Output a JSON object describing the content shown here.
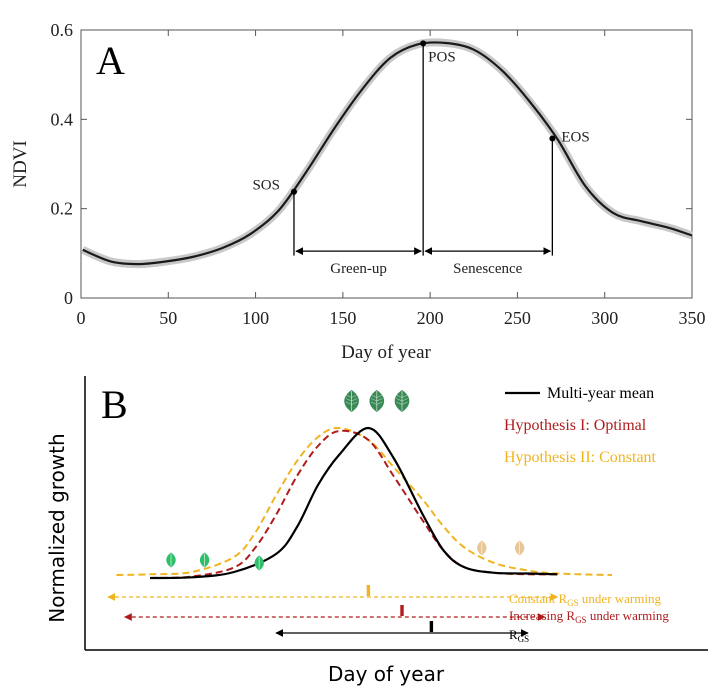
{
  "chart_data": [
    {
      "panel": "A",
      "type": "line",
      "panel_label": "A",
      "xlabel": "Day of year",
      "ylabel": "NDVI",
      "xlim": [
        0,
        350
      ],
      "ylim": [
        0,
        0.6
      ],
      "xticks": [
        0,
        50,
        100,
        150,
        200,
        250,
        300,
        350
      ],
      "yticks": [
        0,
        0.2,
        0.4,
        0.6
      ],
      "ytick_labels": [
        "0",
        "0.2",
        "0.4",
        "0.6"
      ],
      "series": [
        {
          "name": "NDVI",
          "color": "#1a1a1a",
          "band_color": "#c8c8c8",
          "x": [
            1,
            17,
            33,
            49,
            65,
            81,
            97,
            113,
            129,
            145,
            161,
            177,
            193,
            209,
            225,
            241,
            257,
            273,
            289,
            305,
            321,
            337,
            350
          ],
          "y": [
            0.108,
            0.082,
            0.076,
            0.082,
            0.093,
            0.112,
            0.143,
            0.195,
            0.282,
            0.379,
            0.467,
            0.537,
            0.568,
            0.571,
            0.556,
            0.51,
            0.44,
            0.355,
            0.25,
            0.19,
            0.172,
            0.157,
            0.14
          ]
        }
      ],
      "markers": [
        {
          "label": "SOS",
          "x": 122,
          "y": 0.238
        },
        {
          "label": "POS",
          "x": 196,
          "y": 0.57
        },
        {
          "label": "EOS",
          "x": 270,
          "y": 0.357
        }
      ],
      "intervals": [
        {
          "label": "Green-up",
          "from": 122,
          "to": 196,
          "y": 0.105
        },
        {
          "label": "Senescence",
          "from": 196,
          "to": 270,
          "y": 0.105
        }
      ]
    },
    {
      "panel": "B",
      "type": "line",
      "panel_label": "B",
      "xlabel": "Day of year",
      "ylabel": "Normalized growth",
      "xlim": [
        0,
        100
      ],
      "ylim": [
        0,
        100
      ],
      "series": [
        {
          "name": "Multi-year mean",
          "color": "#000000",
          "dashed": false,
          "x": [
            0,
            10,
            20,
            30,
            35,
            40,
            45,
            52,
            58,
            65,
            70,
            75,
            82,
            90,
            97
          ],
          "y": [
            0,
            0.5,
            4,
            16,
            34,
            62,
            82,
            100,
            80,
            42,
            18,
            7,
            3.5,
            3,
            2.5
          ]
        },
        {
          "name": "Hypothesis I: Optimal",
          "color": "#b01c1c",
          "dashed": true,
          "x": [
            0,
            10,
            20,
            25,
            30,
            35,
            40,
            45,
            52,
            58,
            65,
            70,
            75,
            82,
            90,
            97
          ],
          "y": [
            0,
            1,
            7,
            20,
            42,
            68,
            88,
            98,
            92,
            68,
            38,
            18,
            7,
            3.5,
            2.5,
            2.5
          ]
        },
        {
          "name": "Hypothesis II: Constant",
          "color": "#f0b420",
          "dashed": true,
          "x": [
            -8,
            0,
            10,
            20,
            25,
            30,
            35,
            40,
            45,
            52,
            58,
            65,
            70,
            75,
            82,
            90,
            97,
            110
          ],
          "y": [
            2,
            2.5,
            4,
            14,
            30,
            55,
            78,
            94,
            100,
            92,
            74,
            52,
            34,
            20,
            10,
            5,
            3,
            2
          ]
        }
      ],
      "legend": [
        {
          "label": "Multi-year mean",
          "color": "#000000",
          "style": "solid"
        },
        {
          "label": "Hypothesis I: Optimal",
          "color": "#b01c1c",
          "style": "none"
        },
        {
          "label": "Hypothesis II: Constant",
          "color": "#f0b420",
          "style": "none"
        }
      ],
      "growing_season_arrows": [
        {
          "label": "Constant",
          "sub": "GS",
          "label_tail": "under warming",
          "sym": "R",
          "color": "#f0b420",
          "dashed": true,
          "from": -10,
          "to": 97,
          "tick": 52
        },
        {
          "label": "Increasing",
          "sub": "GS",
          "label_tail": "under warming",
          "sym": "R",
          "color": "#b01c1c",
          "dashed": true,
          "from": -6,
          "to": 94,
          "tick": 60
        },
        {
          "label": "",
          "sub": "GS",
          "label_tail": "",
          "sym": "R",
          "color": "#000000",
          "dashed": false,
          "from": 30,
          "to": 90,
          "tick": 67
        }
      ],
      "leaf_icons": [
        {
          "name": "summer-leaf-icon",
          "x": 48,
          "y": 118,
          "color": "#3a8a55"
        },
        {
          "name": "summer-leaf-icon",
          "x": 54,
          "y": 118,
          "color": "#3a8a55"
        },
        {
          "name": "summer-leaf-icon",
          "x": 60,
          "y": 118,
          "color": "#3a8a55"
        },
        {
          "name": "spring-leaf-icon",
          "x": 5,
          "y": 12,
          "color": "#2fbf6a"
        },
        {
          "name": "spring-leaf-icon",
          "x": 13,
          "y": 12,
          "color": "#2fbf6a"
        },
        {
          "name": "spring-leaf-icon",
          "x": 26,
          "y": 10,
          "color": "#2fbf6a"
        },
        {
          "name": "autumn-leaf-icon",
          "x": 79,
          "y": 20,
          "color": "#e8c796"
        },
        {
          "name": "autumn-leaf-icon",
          "x": 88,
          "y": 20,
          "color": "#e8c796"
        }
      ]
    }
  ]
}
